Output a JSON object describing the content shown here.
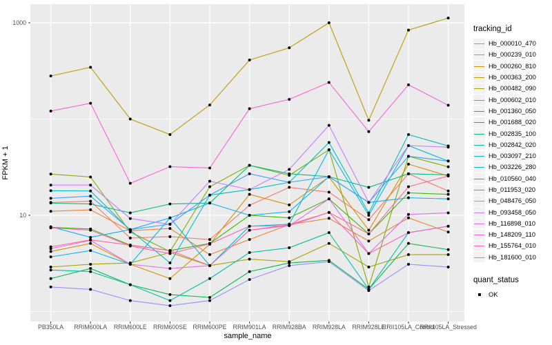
{
  "chart_data": {
    "type": "line",
    "title": "",
    "xlabel": "sample_name",
    "ylabel": "FPKM + 1",
    "x_scale": "categorical",
    "y_scale": "log10",
    "y_ticks": [
      10,
      1000
    ],
    "y_minor_ticks": [
      1,
      100
    ],
    "ylim": [
      0.8,
      1500
    ],
    "grid": "white major+minor gridlines on gray panel",
    "panel_background": "#EBEBEB",
    "gridline_color": "#FFFFFF",
    "tick_label_color": "#4d4d4d",
    "point_color": "#000000",
    "legend_position": "right",
    "categories": [
      "PB350LA",
      "RRIM600LA",
      "RRIM600LE",
      "RRIM600SE",
      "RRIM600PE",
      "RRIM901LA",
      "RRIM928BA",
      "RRIM928LA",
      "RRIM928LE",
      "RRII105LA_Control",
      "RRII105LA_Stressed"
    ],
    "series": [
      {
        "name": "Hb_000010_470",
        "color": "#F8766D",
        "values": [
          13.6,
          14.0,
          5.8,
          6.0,
          5.6,
          12.7,
          19.5,
          17.4,
          9.0,
          27.0,
          17.9
        ]
      },
      {
        "name": "Hb_000239_010",
        "color": "#EA8331",
        "values": [
          11.0,
          11.4,
          6.9,
          7.3,
          3.9,
          5.6,
          8.0,
          9.3,
          5.4,
          9.4,
          6.7
        ]
      },
      {
        "name": "Hb_000260_810",
        "color": "#D89000",
        "values": [
          4.2,
          5.1,
          3.1,
          2.2,
          5.0,
          16.5,
          12.8,
          25.0,
          7.0,
          34.0,
          25.6
        ]
      },
      {
        "name": "Hb_000363_200",
        "color": "#C09B00",
        "values": [
          280,
          345,
          100,
          69,
          140,
          410,
          550,
          1000,
          97,
          840,
          1120
        ]
      },
      {
        "name": "Hb_000482_090",
        "color": "#A3A500",
        "values": [
          2.9,
          3.1,
          3.2,
          4.1,
          3.0,
          3.5,
          3.3,
          5.1,
          2.9,
          3.9,
          3.9
        ]
      },
      {
        "name": "Hb_000602_010",
        "color": "#7CAE00",
        "values": [
          26.8,
          25.0,
          6.7,
          4.2,
          19.8,
          33.0,
          26.0,
          48.0,
          1.8,
          41.0,
          31.9
        ]
      },
      {
        "name": "Hb_001360_050",
        "color": "#39B600",
        "values": [
          7.5,
          7.2,
          4.9,
          4.3,
          5.1,
          10.0,
          9.4,
          14.8,
          6.4,
          17.1,
          16.5
        ]
      },
      {
        "name": "Hb_001688_020",
        "color": "#00BB4E",
        "values": [
          2.2,
          2.8,
          1.9,
          1.5,
          1.4,
          2.6,
          3.2,
          3.4,
          1.7,
          5.1,
          4.4
        ]
      },
      {
        "name": "Hb_002835_100",
        "color": "#00BF7D",
        "values": [
          13.4,
          13.1,
          10.6,
          13.1,
          13.4,
          33.0,
          27.0,
          25.2,
          19.5,
          27.0,
          26.3
        ]
      },
      {
        "name": "Hb_002842_020",
        "color": "#00C1A3",
        "values": [
          2.7,
          2.6,
          1.9,
          1.3,
          2.2,
          4.1,
          4.6,
          6.6,
          1.7,
          6.6,
          7.7
        ]
      },
      {
        "name": "Hb_003097_210",
        "color": "#00BFC4",
        "values": [
          18.0,
          17.9,
          7.0,
          3.2,
          16.2,
          18.5,
          22.0,
          57.0,
          10.6,
          69.0,
          52.5
        ]
      },
      {
        "name": "Hb_003226_280",
        "color": "#00BAE0",
        "values": [
          3.7,
          4.3,
          3.1,
          9.4,
          3.0,
          7.7,
          8.1,
          48.0,
          10.0,
          53.0,
          36.6
        ]
      },
      {
        "name": "Hb_010560_040",
        "color": "#00B0F6",
        "values": [
          7.6,
          5.9,
          7.1,
          9.4,
          13.4,
          10.0,
          10.9,
          25.2,
          13.6,
          15.2,
          14.8
        ]
      },
      {
        "name": "Hb_011953_020",
        "color": "#35A2FF",
        "values": [
          15.0,
          15.8,
          7.1,
          8.1,
          16.2,
          27.0,
          22.0,
          25.2,
          13.6,
          41.0,
          36.6
        ]
      },
      {
        "name": "Hb_048476_050",
        "color": "#9590FF",
        "values": [
          1.8,
          1.7,
          1.3,
          1.15,
          1.3,
          2.15,
          3.0,
          3.3,
          1.65,
          3.1,
          2.9
        ]
      },
      {
        "name": "Hb_093458_050",
        "color": "#C77CFF",
        "values": [
          20.6,
          20.6,
          9.25,
          8.05,
          22.6,
          18.5,
          30.0,
          86.0,
          13.6,
          53.0,
          51.0
        ]
      },
      {
        "name": "Hb_116898_010",
        "color": "#E76BF3",
        "values": [
          4.5,
          5.5,
          3.1,
          2.8,
          3.0,
          7.0,
          7.8,
          14.8,
          4.0,
          10.2,
          10.6
        ]
      },
      {
        "name": "Hb_148209_110",
        "color": "#FA62DB",
        "values": [
          121,
          146,
          21.5,
          32,
          31,
          128,
          160,
          240,
          74,
          227,
          139
        ]
      },
      {
        "name": "Hb_155764_010",
        "color": "#FF62BC",
        "values": [
          7.4,
          7.0,
          4.8,
          4.0,
          5.05,
          7.7,
          7.8,
          10.7,
          4.0,
          6.6,
          7.7
        ]
      },
      {
        "name": "Hb_181600_010",
        "color": "#FF6A98",
        "values": [
          4.7,
          5.55,
          4.9,
          4.3,
          3.0,
          7.0,
          8.0,
          10.7,
          6.4,
          19.8,
          25.6
        ]
      }
    ],
    "legend_title": "tracking_id",
    "status_legend": {
      "title": "quant_status",
      "items": [
        {
          "label": "OK",
          "marker": "black-point"
        }
      ]
    }
  }
}
